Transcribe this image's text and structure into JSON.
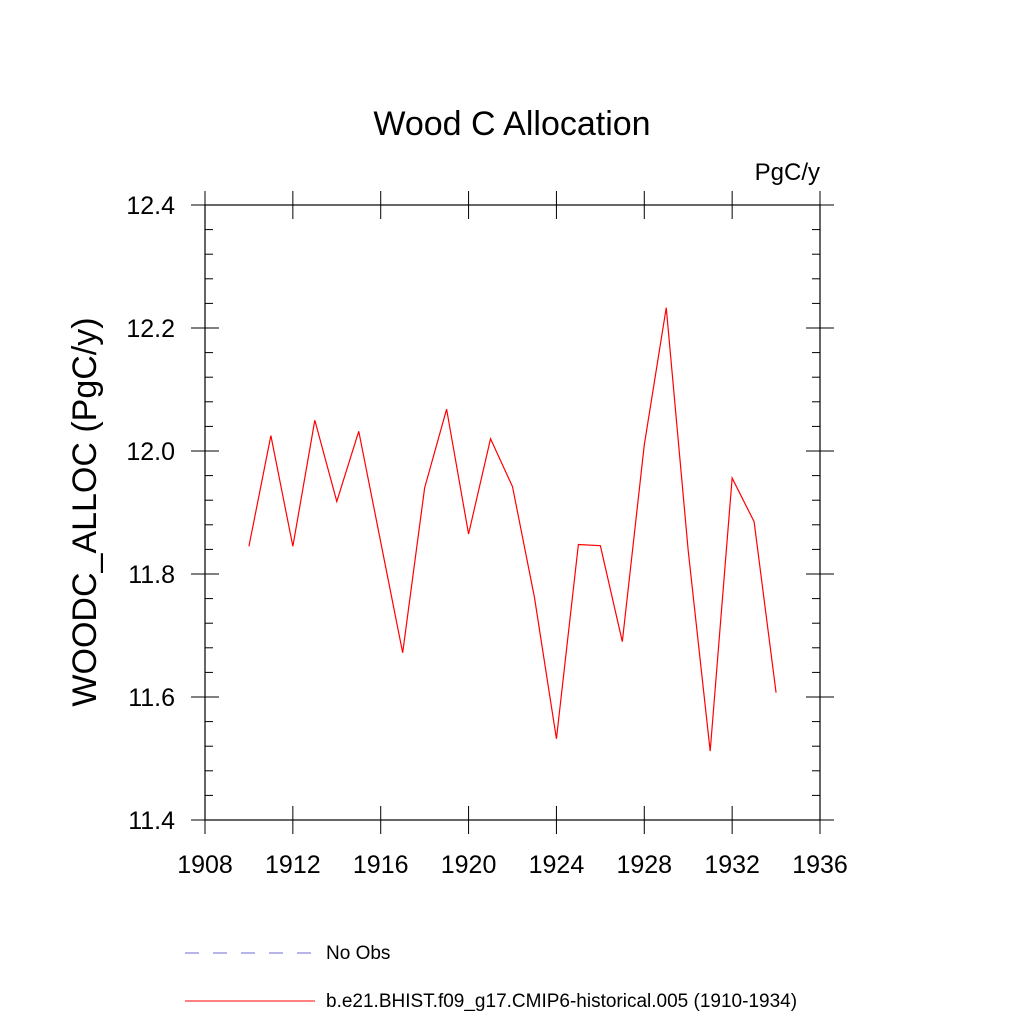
{
  "chart_data": {
    "type": "line",
    "title": "Wood C Allocation",
    "units_label": "PgC/y",
    "ylabel": "WOODC_ALLOC  (PgC/y)",
    "xlabel": "",
    "xlim": [
      1908,
      1936
    ],
    "ylim": [
      11.4,
      12.4
    ],
    "x_ticks": [
      1908,
      1912,
      1916,
      1920,
      1924,
      1928,
      1932,
      1936
    ],
    "x_tick_labels": [
      "1908",
      "1912",
      "1916",
      "1920",
      "1924",
      "1928",
      "1932",
      "1936"
    ],
    "y_ticks": [
      11.4,
      11.6,
      11.8,
      12.0,
      12.2,
      12.4
    ],
    "y_tick_labels": [
      "11.4",
      "11.6",
      "11.8",
      "12.0",
      "12.2",
      "12.4"
    ],
    "grid": false,
    "legend_position": "bottom",
    "legend": [
      {
        "label": "No Obs",
        "color": "#6b6bd6",
        "style": "dashed"
      },
      {
        "label": "b.e21.BHIST.f09_g17.CMIP6-historical.005 (1910-1934)",
        "color": "#ff0000",
        "style": "solid"
      }
    ],
    "series": [
      {
        "color": "#ff0000",
        "x": [
          1910,
          1911,
          1912,
          1913,
          1914,
          1915,
          1916,
          1917,
          1918,
          1919,
          1920,
          1921,
          1922,
          1923,
          1924,
          1925,
          1926,
          1927,
          1928,
          1929,
          1930,
          1931,
          1932,
          1933,
          1934
        ],
        "values": [
          11.845,
          12.025,
          11.845,
          12.05,
          11.918,
          12.032,
          11.852,
          11.672,
          11.94,
          12.068,
          11.865,
          12.02,
          11.942,
          11.762,
          11.532,
          11.848,
          11.846,
          11.69,
          12.01,
          12.233,
          11.838,
          11.512,
          11.956,
          11.885,
          11.607
        ]
      }
    ]
  }
}
